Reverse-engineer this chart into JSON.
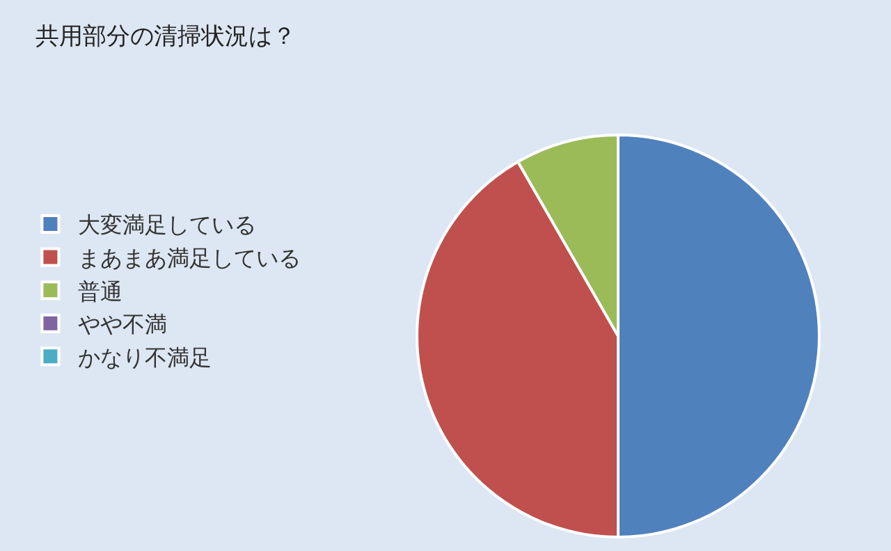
{
  "chart_data": {
    "type": "pie",
    "title": "共用部分の清掃状況は？",
    "categories": [
      "大変満足している",
      "まあまあ満足している",
      "普通",
      "やや不満",
      "かなり不満足"
    ],
    "values": [
      50,
      41.7,
      8.3,
      0,
      0
    ],
    "colors": [
      "#4f81bd",
      "#c0504d",
      "#9bbb59",
      "#8064a2",
      "#4bacc6"
    ],
    "legend": "left"
  }
}
